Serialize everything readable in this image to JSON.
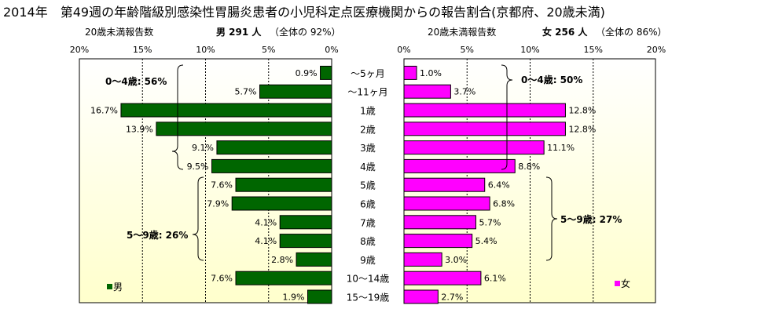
{
  "title": "2014年　第49週の年齢階級別感染性胃腸炎患者の小児科定点医療機関からの報告割合(京都府、20歳未満)",
  "colors": {
    "male_bar": "#006600",
    "female_bar": "#ff00ff",
    "plot_bg_top": "#ffffff",
    "plot_bg_bottom": "#ffffcc",
    "frame": "#000000"
  },
  "categories": [
    "～5ヶ月",
    "～11ヶ月",
    "1歳",
    "2歳",
    "3歳",
    "4歳",
    "5歳",
    "6歳",
    "7歳",
    "8歳",
    "9歳",
    "10～14歳",
    "15～19歳"
  ],
  "male": {
    "header_left": "20歳未満報告数",
    "header_main": "男 291 人",
    "header_share": "（全体の 92%）",
    "legend_label": "男",
    "group_labels": [
      "0～4歳: 56%",
      "5～9歳: 26%"
    ],
    "axis_ticks": [
      "20%",
      "15%",
      "10%",
      "5%",
      "0%"
    ]
  },
  "female": {
    "header_left": "20歳未満報告数",
    "header_main": "女 256 人",
    "header_share": "（全体の 86%）",
    "legend_label": "女",
    "group_labels": [
      "0～4歳: 50%",
      "5～9歳: 27%"
    ],
    "axis_ticks": [
      "0%",
      "5%",
      "10%",
      "15%",
      "20%"
    ]
  },
  "chart_data": {
    "type": "bar",
    "orientation": "horizontal",
    "layout": "population-pyramid",
    "categories": [
      "～5ヶ月",
      "～11ヶ月",
      "1歳",
      "2歳",
      "3歳",
      "4歳",
      "5歳",
      "6歳",
      "7歳",
      "8歳",
      "9歳",
      "10～14歳",
      "15～19歳"
    ],
    "series": [
      {
        "name": "男",
        "values": [
          0.9,
          5.7,
          16.7,
          13.9,
          9.1,
          9.5,
          7.6,
          7.9,
          4.1,
          4.1,
          2.8,
          7.6,
          1.9
        ],
        "labels": [
          "0.9%",
          "5.7%",
          "16.7%",
          "13.9%",
          "9.1%",
          "9.5%",
          "7.6%",
          "7.9%",
          "4.1%",
          "4.1%",
          "2.8%",
          "7.6%",
          "1.9%"
        ]
      },
      {
        "name": "女",
        "values": [
          1.0,
          3.7,
          12.8,
          12.8,
          11.1,
          8.8,
          6.4,
          6.8,
          5.7,
          5.4,
          3.0,
          6.1,
          2.7
        ],
        "labels": [
          "1.0%",
          "3.7%",
          "12.8%",
          "12.8%",
          "11.1%",
          "8.8%",
          "6.4%",
          "6.8%",
          "5.7%",
          "5.4%",
          "3.0%",
          "6.1%",
          "2.7%"
        ]
      }
    ],
    "xlim": [
      0,
      20
    ],
    "xunit": "%",
    "grid": true,
    "legend": "bottom-left (男), bottom-right (女)"
  }
}
